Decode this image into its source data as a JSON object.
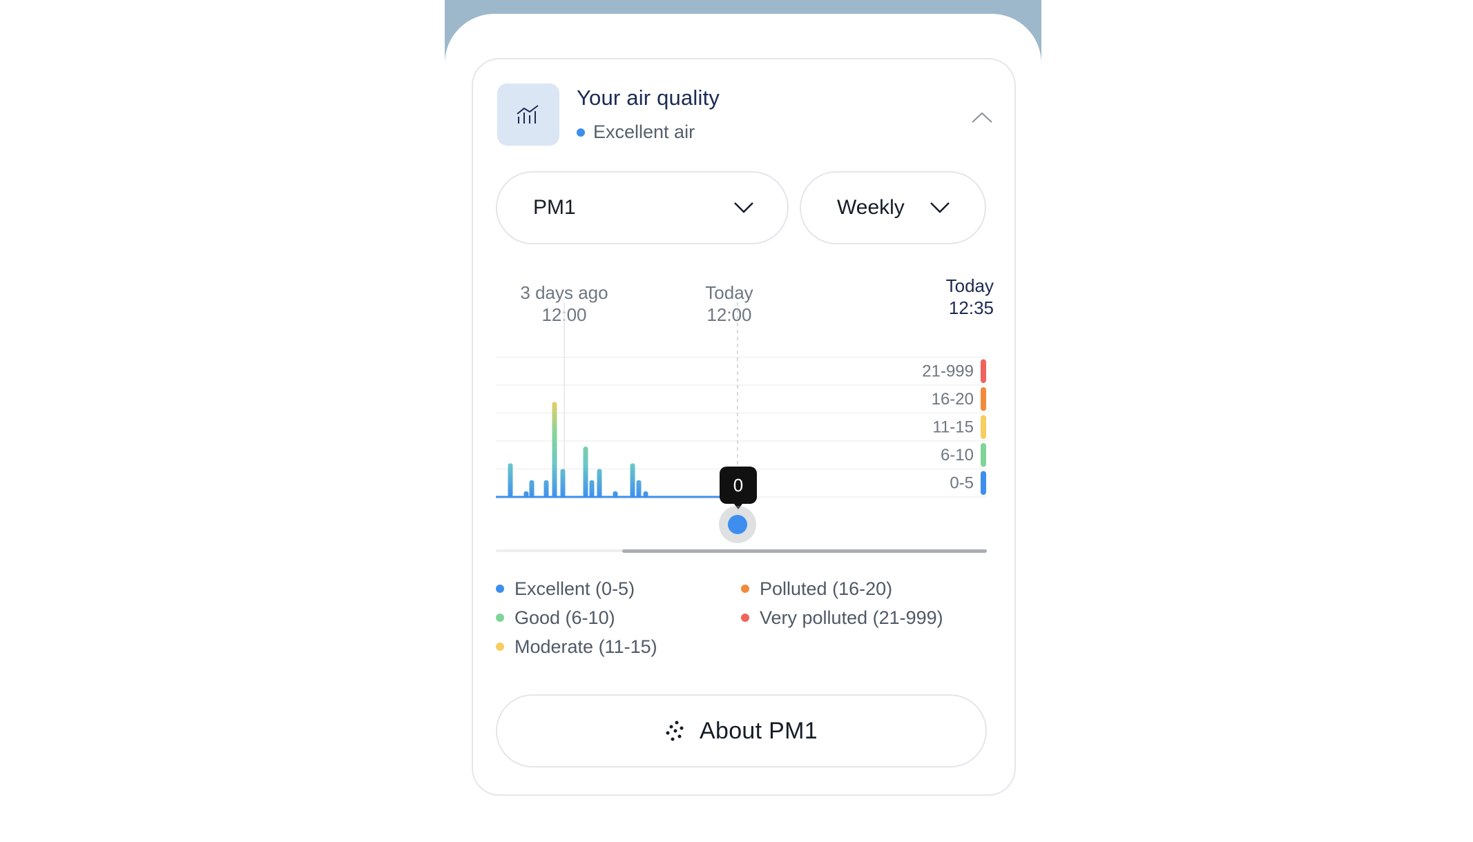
{
  "card": {
    "title": "Your air quality",
    "status": "Excellent air",
    "status_color": "#3d8eef",
    "header_icon": "chart-trend-icon",
    "collapse_icon": "chevron-up-icon"
  },
  "filters": {
    "metric": "PM1",
    "period": "Weekly"
  },
  "timeline": {
    "labels": [
      {
        "line1": "3 days ago",
        "line2": "12:00"
      },
      {
        "line1": "Today",
        "line2": "12:00"
      }
    ],
    "now": {
      "line1": "Today",
      "line2": "12:35"
    }
  },
  "tooltip": {
    "value": "0"
  },
  "chart_data": {
    "type": "bar",
    "y_bands": [
      {
        "label": "21-999",
        "color": "#f0625c"
      },
      {
        "label": "16-20",
        "color": "#f28a3c"
      },
      {
        "label": "11-15",
        "color": "#f7cd5f"
      },
      {
        "label": "6-10",
        "color": "#7fd49a"
      },
      {
        "label": "0-5",
        "color": "#3d8eef"
      }
    ],
    "values": [
      6,
      1,
      3,
      3,
      17,
      5,
      9,
      3,
      5,
      1,
      6,
      3,
      1,
      1
    ]
  },
  "legend": [
    {
      "label": "Excellent (0-5)",
      "color": "#3d8eef"
    },
    {
      "label": "Good (6-10)",
      "color": "#7fd49a"
    },
    {
      "label": "Moderate (11-15)",
      "color": "#f7cd5f"
    },
    {
      "label": "Polluted (16-20)",
      "color": "#f28a3c"
    },
    {
      "label": "Very polluted (21-999)",
      "color": "#f0625c"
    }
  ],
  "about_button": {
    "label": "About PM1",
    "icon": "particles-icon"
  }
}
